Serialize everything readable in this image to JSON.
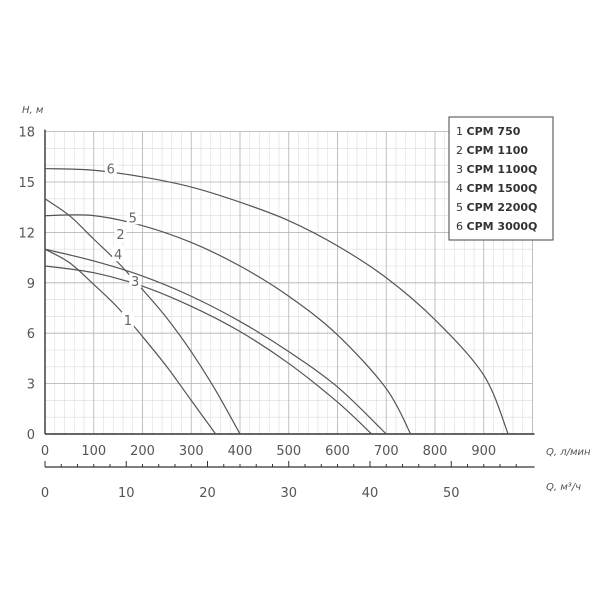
{
  "chart_data": {
    "type": "line",
    "ylabel": "H, м",
    "xlabel": "Q, л/мин",
    "xlabel2": "Q, м³/ч",
    "xlim": [
      0,
      1000
    ],
    "ylim": [
      0,
      18
    ],
    "xticks": [
      0,
      100,
      200,
      300,
      400,
      500,
      600,
      700,
      800,
      900
    ],
    "yticks": [
      0,
      3,
      6,
      9,
      12,
      15,
      18
    ],
    "x2ticks": [
      0,
      10,
      20,
      30,
      40,
      50
    ],
    "x2scale_lpm_per_unit": 16.6667,
    "grid": true,
    "legend_position": "top-right",
    "legend": [
      {
        "num": "1",
        "name": "CPM 750"
      },
      {
        "num": "2",
        "name": "CPM 1100"
      },
      {
        "num": "3",
        "name": "CPM 1100Q"
      },
      {
        "num": "4",
        "name": "CPM 1500Q"
      },
      {
        "num": "5",
        "name": "CPM 2200Q"
      },
      {
        "num": "6",
        "name": "CPM 3000Q"
      }
    ],
    "series": [
      {
        "label": "1",
        "x": [
          0,
          50,
          100,
          150,
          200,
          250,
          300,
          350
        ],
        "y": [
          11,
          10.2,
          8.9,
          7.5,
          5.8,
          4.0,
          2.0,
          0
        ]
      },
      {
        "label": "2",
        "x": [
          0,
          50,
          100,
          150,
          200,
          250,
          300,
          350,
          400
        ],
        "y": [
          14,
          13.0,
          11.6,
          10.2,
          8.6,
          6.9,
          4.9,
          2.6,
          0
        ]
      },
      {
        "label": "3",
        "x": [
          0,
          100,
          200,
          300,
          400,
          500,
          600,
          670
        ],
        "y": [
          10,
          9.6,
          8.8,
          7.6,
          6.1,
          4.2,
          1.9,
          0
        ]
      },
      {
        "label": "4",
        "x": [
          0,
          100,
          200,
          300,
          400,
          500,
          600,
          700
        ],
        "y": [
          11,
          10.3,
          9.4,
          8.2,
          6.7,
          4.9,
          2.8,
          0
        ]
      },
      {
        "label": "5",
        "x": [
          0,
          100,
          200,
          300,
          400,
          500,
          600,
          700,
          750
        ],
        "y": [
          13,
          13.0,
          12.4,
          11.4,
          10.0,
          8.2,
          5.9,
          2.7,
          0
        ]
      },
      {
        "label": "6",
        "x": [
          0,
          100,
          200,
          300,
          400,
          500,
          600,
          700,
          800,
          900,
          950
        ],
        "y": [
          15.8,
          15.7,
          15.3,
          14.7,
          13.8,
          12.7,
          11.2,
          9.3,
          6.8,
          3.5,
          0
        ]
      }
    ]
  }
}
